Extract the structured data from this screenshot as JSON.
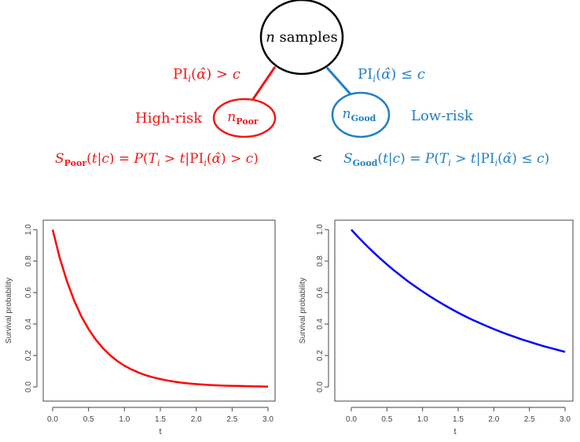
{
  "tree": {
    "root": {
      "n": "n",
      "label": "samples"
    },
    "left_branch": {
      "condition": "PI_i(α̂) > c",
      "node_n": "n",
      "node_sub": "Poor",
      "risk_label": "High-risk",
      "color": "#f01818"
    },
    "right_branch": {
      "condition": "PI_i(α̂) ≤ c",
      "node_n": "n",
      "node_sub": "Good",
      "risk_label": "Low-risk",
      "color": "#1f7fc4"
    },
    "comparison": "<",
    "left_formula": "S_Poor(t|c) = P(T_i > t|PI_i(α̂) > c)",
    "right_formula": "S_Good(t|c) = P(T_i > t|PI_i(α̂) ≤ c)"
  },
  "chart_data": [
    {
      "type": "line",
      "xlabel": "t",
      "ylabel": "Survival probability",
      "xlim": [
        0,
        3
      ],
      "ylim": [
        0,
        1
      ],
      "x_ticks": [
        "0.0",
        "0.5",
        "1.0",
        "1.5",
        "2.0",
        "2.5",
        "3.0"
      ],
      "y_ticks": [
        "0.0",
        "0.2",
        "0.4",
        "0.6",
        "0.8",
        "1.0"
      ],
      "x": [
        0,
        0.1,
        0.2,
        0.3,
        0.4,
        0.5,
        0.6,
        0.7,
        0.8,
        0.9,
        1.0,
        1.1,
        1.2,
        1.3,
        1.4,
        1.5,
        1.6,
        1.7,
        1.8,
        1.9,
        2.0,
        2.1,
        2.2,
        2.3,
        2.4,
        2.5,
        2.6,
        2.7,
        2.8,
        2.9,
        3.0
      ],
      "series": [
        {
          "color": "#ff0000",
          "values": [
            1.0,
            0.819,
            0.67,
            0.549,
            0.449,
            0.368,
            0.301,
            0.247,
            0.202,
            0.165,
            0.135,
            0.111,
            0.091,
            0.074,
            0.061,
            0.05,
            0.041,
            0.033,
            0.027,
            0.022,
            0.018,
            0.015,
            0.012,
            0.01,
            0.008,
            0.007,
            0.006,
            0.005,
            0.004,
            0.003,
            0.002
          ]
        }
      ]
    },
    {
      "type": "line",
      "xlabel": "t",
      "ylabel": "Survival probability",
      "xlim": [
        0,
        3
      ],
      "ylim": [
        0,
        1
      ],
      "x_ticks": [
        "0.0",
        "0.5",
        "1.0",
        "1.5",
        "2.0",
        "2.5",
        "3.0"
      ],
      "y_ticks": [
        "0.0",
        "0.2",
        "0.4",
        "0.6",
        "0.8",
        "1.0"
      ],
      "x": [
        0,
        0.1,
        0.2,
        0.3,
        0.4,
        0.5,
        0.6,
        0.7,
        0.8,
        0.9,
        1.0,
        1.1,
        1.2,
        1.3,
        1.4,
        1.5,
        1.6,
        1.7,
        1.8,
        1.9,
        2.0,
        2.1,
        2.2,
        2.3,
        2.4,
        2.5,
        2.6,
        2.7,
        2.8,
        2.9,
        3.0
      ],
      "series": [
        {
          "color": "#0000ff",
          "values": [
            1.0,
            0.951,
            0.905,
            0.861,
            0.819,
            0.779,
            0.741,
            0.705,
            0.67,
            0.638,
            0.607,
            0.577,
            0.549,
            0.522,
            0.497,
            0.472,
            0.449,
            0.427,
            0.407,
            0.387,
            0.368,
            0.35,
            0.333,
            0.317,
            0.301,
            0.287,
            0.273,
            0.259,
            0.247,
            0.235,
            0.223
          ]
        }
      ]
    }
  ]
}
